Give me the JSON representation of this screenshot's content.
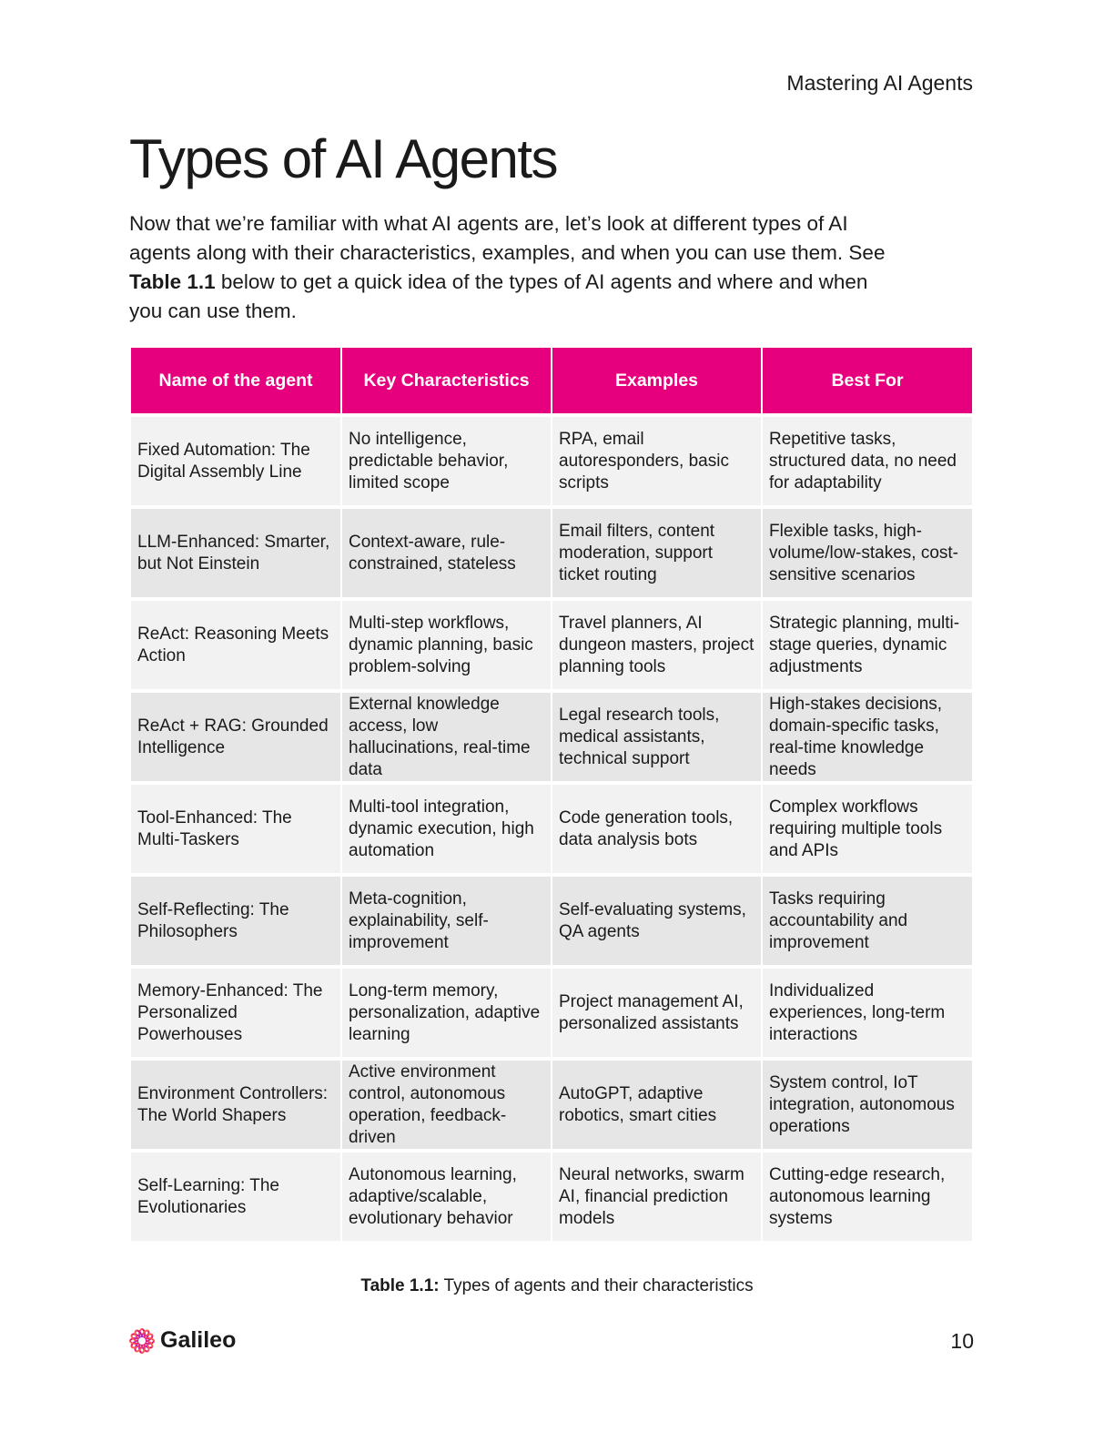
{
  "running_header": "Mastering AI Agents",
  "title": "Types of AI Agents",
  "intro": {
    "part1": "Now that we’re familiar with what AI agents are, let’s look at different types of AI agents along with their characteristics, examples, and when you can use them. See ",
    "bold": "Table 1.1",
    "part2": " below to get a quick idea of the types of AI agents and where and when you can use them."
  },
  "table": {
    "headers": [
      "Name of the agent",
      "Key Characteristics",
      "Examples",
      "Best For"
    ],
    "rows": [
      [
        "Fixed Automation: The Digital Assembly Line",
        "No intelligence, predictable behavior, limited scope",
        "RPA, email autoresponders, basic scripts",
        "Repetitive tasks, structured data, no need for adaptability"
      ],
      [
        "LLM-Enhanced: Smarter, but Not Einstein",
        "Context-aware, rule-constrained, stateless",
        "Email filters, content moderation, support ticket routing",
        "Flexible tasks, high-volume/low-stakes, cost-sensitive scenarios"
      ],
      [
        "ReAct: Reasoning Meets Action",
        "Multi-step workflows, dynamic planning, basic problem-solving",
        "Travel planners, AI dungeon masters, project planning tools",
        "Strategic planning, multi-stage queries, dynamic adjustments"
      ],
      [
        "ReAct + RAG: Grounded Intelligence",
        "External knowledge access, low hallucinations, real-time data",
        "Legal research tools, medical assistants, technical support",
        "High-stakes decisions, domain-specific tasks, real-time knowledge needs"
      ],
      [
        "Tool-Enhanced: The Multi-Taskers",
        "Multi-tool integration, dynamic execution, high automation",
        "Code generation tools, data analysis bots",
        "Complex workflows requiring multiple tools and APIs"
      ],
      [
        "Self-Reflecting: The Philosophers",
        "Meta-cognition, explainability, self-improvement",
        "Self-evaluating systems, QA agents",
        "Tasks requiring accountability and improvement"
      ],
      [
        "Memory-Enhanced: The Personalized Powerhouses",
        "Long-term memory, personalization, adaptive learning",
        "Project management AI, personalized assistants",
        "Individualized experiences, long-term interactions"
      ],
      [
        "Environment Controllers: The World Shapers",
        "Active environment control, autonomous operation, feedback-driven",
        "AutoGPT, adaptive robotics, smart cities",
        "System control, IoT integration, autonomous operations"
      ],
      [
        "Self-Learning: The Evolutionaries",
        "Autonomous learning, adaptive/scalable, evolutionary behavior",
        "Neural networks, swarm AI, financial prediction models",
        "Cutting-edge research, autonomous learning systems"
      ]
    ]
  },
  "caption": {
    "bold": "Table 1.1:",
    "text": " Types of agents and their characteristics"
  },
  "footer": {
    "logo": "Galileo",
    "page_number": "10"
  },
  "colors": {
    "header_bg": "#e6007e",
    "row_light": "#f2f2f2",
    "row_dark": "#e6e6e6"
  }
}
